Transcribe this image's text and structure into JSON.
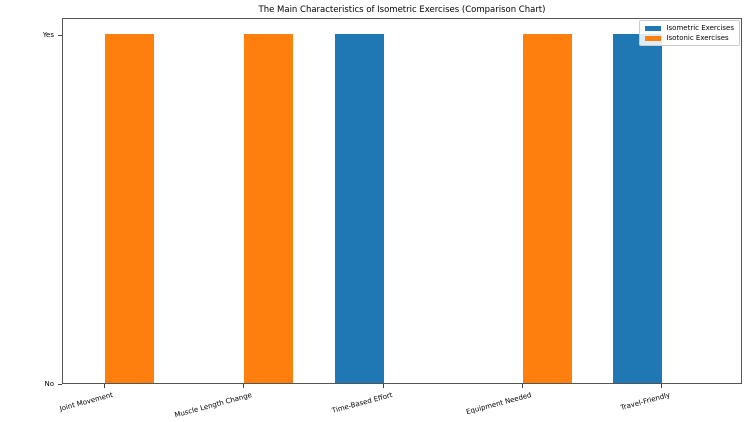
{
  "chart_data": {
    "type": "bar",
    "title": "The Main Characteristics of Isometric Exercises (Comparison Chart)",
    "categories": [
      "Joint Movement",
      "Muscle Length Change",
      "Time-Based Effort",
      "Equipment Needed",
      "Travel-Friendly"
    ],
    "series": [
      {
        "name": "Isometric Exercises",
        "values": [
          0,
          0,
          1,
          0,
          1
        ],
        "color": "#1f77b4"
      },
      {
        "name": "Isotonic Exercises",
        "values": [
          1,
          1,
          0,
          1,
          0
        ],
        "color": "#ff7f0e"
      }
    ],
    "xlabel": "",
    "ylabel": "",
    "yticks": [
      {
        "value": 0,
        "label": "No"
      },
      {
        "value": 1,
        "label": "Yes"
      }
    ],
    "ylim": [
      0,
      1.05
    ],
    "grid": false,
    "legend_position": "upper right",
    "xtick_rotation": 15
  }
}
